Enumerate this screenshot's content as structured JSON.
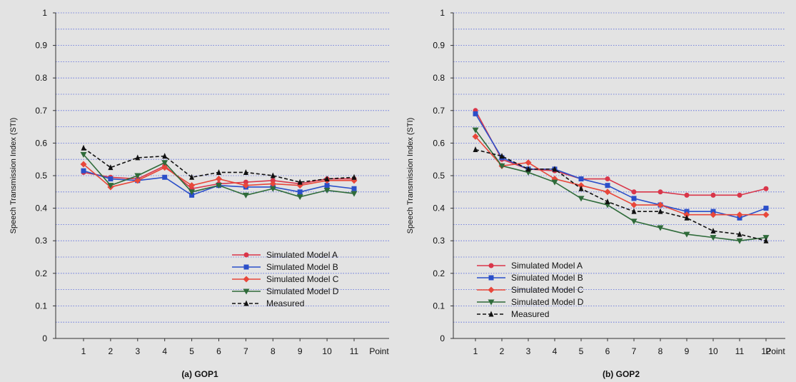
{
  "chart_data": [
    {
      "type": "line",
      "caption": "(a) GOP1",
      "ylabel": "Speech Transmission Index (STI)",
      "x_unit_label": "Point",
      "x": [
        1,
        2,
        3,
        4,
        5,
        6,
        7,
        8,
        9,
        10,
        11
      ],
      "ylim": [
        0,
        1
      ],
      "yticks": [
        "0",
        "0.1",
        "0.2",
        "0.3",
        "0.4",
        "0.5",
        "0.6",
        "0.7",
        "0.8",
        "0.9",
        "1"
      ],
      "grid": "horizontal dotted",
      "legend_position": "bottom-right",
      "series": [
        {
          "name": "Simulated Model A",
          "color": "#d9364a",
          "marker": "circle",
          "values": [
            0.51,
            0.495,
            0.49,
            0.53,
            0.46,
            0.475,
            0.48,
            0.485,
            0.475,
            0.49,
            0.49
          ]
        },
        {
          "name": "Simulated Model B",
          "color": "#2b4fc9",
          "marker": "square",
          "values": [
            0.515,
            0.49,
            0.485,
            0.495,
            0.44,
            0.47,
            0.465,
            0.465,
            0.45,
            0.47,
            0.46
          ]
        },
        {
          "name": "Simulated Model C",
          "color": "#e8473a",
          "marker": "diamond",
          "values": [
            0.535,
            0.465,
            0.485,
            0.525,
            0.47,
            0.49,
            0.47,
            0.475,
            0.47,
            0.485,
            0.485
          ]
        },
        {
          "name": "Simulated Model D",
          "color": "#2f6b3a",
          "marker": "triangle-down",
          "values": [
            0.565,
            0.47,
            0.5,
            0.54,
            0.45,
            0.47,
            0.44,
            0.46,
            0.435,
            0.455,
            0.445
          ]
        },
        {
          "name": "Measured",
          "color": "#111111",
          "marker": "triangle-up",
          "dashed": true,
          "values": [
            0.585,
            0.525,
            0.555,
            0.56,
            0.495,
            0.51,
            0.51,
            0.5,
            0.48,
            0.49,
            0.495
          ]
        }
      ]
    },
    {
      "type": "line",
      "caption": "(b) GOP2",
      "ylabel": "Speech Transmission Index (STI)",
      "x_unit_label": "Point",
      "x": [
        1,
        2,
        3,
        4,
        5,
        6,
        7,
        8,
        9,
        10,
        11,
        12
      ],
      "ylim": [
        0,
        1
      ],
      "yticks": [
        "0",
        "0.1",
        "0.2",
        "0.3",
        "0.4",
        "0.5",
        "0.6",
        "0.7",
        "0.8",
        "0.9",
        "1"
      ],
      "grid": "horizontal dotted",
      "legend_position": "bottom-left",
      "series": [
        {
          "name": "Simulated Model A",
          "color": "#d9364a",
          "marker": "circle",
          "values": [
            0.7,
            0.55,
            0.52,
            0.515,
            0.49,
            0.49,
            0.45,
            0.45,
            0.44,
            0.44,
            0.44,
            0.46
          ]
        },
        {
          "name": "Simulated Model B",
          "color": "#2b4fc9",
          "marker": "square",
          "values": [
            0.69,
            0.555,
            0.52,
            0.52,
            0.49,
            0.47,
            0.43,
            0.41,
            0.39,
            0.39,
            0.37,
            0.4
          ]
        },
        {
          "name": "Simulated Model C",
          "color": "#e8473a",
          "marker": "diamond",
          "values": [
            0.62,
            0.53,
            0.54,
            0.49,
            0.47,
            0.45,
            0.41,
            0.41,
            0.38,
            0.38,
            0.38,
            0.38
          ]
        },
        {
          "name": "Simulated Model D",
          "color": "#2f6b3a",
          "marker": "triangle-down",
          "values": [
            0.64,
            0.53,
            0.51,
            0.48,
            0.43,
            0.41,
            0.36,
            0.34,
            0.32,
            0.31,
            0.3,
            0.31
          ]
        },
        {
          "name": "Measured",
          "color": "#111111",
          "marker": "triangle-up",
          "dashed": true,
          "values": [
            0.58,
            0.56,
            0.52,
            0.52,
            0.46,
            0.42,
            0.39,
            0.39,
            0.37,
            0.33,
            0.32,
            0.3
          ]
        }
      ]
    }
  ]
}
